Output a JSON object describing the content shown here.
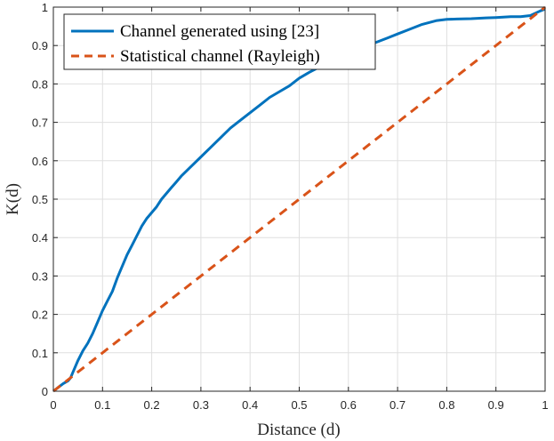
{
  "chart_data": {
    "type": "line",
    "title": "",
    "xlabel": "Distance (d)",
    "ylabel": "K(d)",
    "xlim": [
      0,
      1
    ],
    "ylim": [
      0,
      1
    ],
    "grid": true,
    "legend_position": "top-left",
    "xticks": [
      "0",
      "0.1",
      "0.2",
      "0.3",
      "0.4",
      "0.5",
      "0.6",
      "0.7",
      "0.8",
      "0.9",
      "1"
    ],
    "yticks": [
      "0",
      "0.1",
      "0.2",
      "0.3",
      "0.4",
      "0.5",
      "0.6",
      "0.7",
      "0.8",
      "0.9",
      "1"
    ],
    "series": [
      {
        "name": "Channel generated using [23]",
        "color": "#0072BD",
        "style": "solid",
        "x": [
          0,
          0.01,
          0.02,
          0.03,
          0.035,
          0.04,
          0.05,
          0.06,
          0.07,
          0.08,
          0.09,
          0.1,
          0.11,
          0.12,
          0.13,
          0.14,
          0.15,
          0.16,
          0.17,
          0.18,
          0.19,
          0.2,
          0.21,
          0.22,
          0.23,
          0.24,
          0.25,
          0.26,
          0.28,
          0.3,
          0.32,
          0.34,
          0.36,
          0.38,
          0.4,
          0.42,
          0.44,
          0.46,
          0.48,
          0.5,
          0.52,
          0.55,
          0.58,
          0.6,
          0.62,
          0.65,
          0.68,
          0.7,
          0.72,
          0.75,
          0.78,
          0.8,
          0.82,
          0.85,
          0.88,
          0.9,
          0.93,
          0.95,
          0.97,
          0.99,
          1.0
        ],
        "y": [
          0,
          0.01,
          0.02,
          0.027,
          0.035,
          0.05,
          0.08,
          0.105,
          0.125,
          0.15,
          0.18,
          0.21,
          0.235,
          0.26,
          0.295,
          0.325,
          0.355,
          0.38,
          0.405,
          0.43,
          0.45,
          0.465,
          0.48,
          0.5,
          0.515,
          0.53,
          0.545,
          0.56,
          0.585,
          0.61,
          0.635,
          0.66,
          0.685,
          0.705,
          0.725,
          0.745,
          0.765,
          0.78,
          0.795,
          0.815,
          0.83,
          0.85,
          0.87,
          0.88,
          0.89,
          0.905,
          0.92,
          0.93,
          0.94,
          0.955,
          0.965,
          0.968,
          0.969,
          0.97,
          0.972,
          0.973,
          0.975,
          0.975,
          0.978,
          0.99,
          0.995
        ]
      },
      {
        "name": "Statistical channel (Rayleigh)",
        "color": "#D95319",
        "style": "dashed",
        "x": [
          0,
          1
        ],
        "y": [
          0,
          1
        ]
      }
    ]
  }
}
